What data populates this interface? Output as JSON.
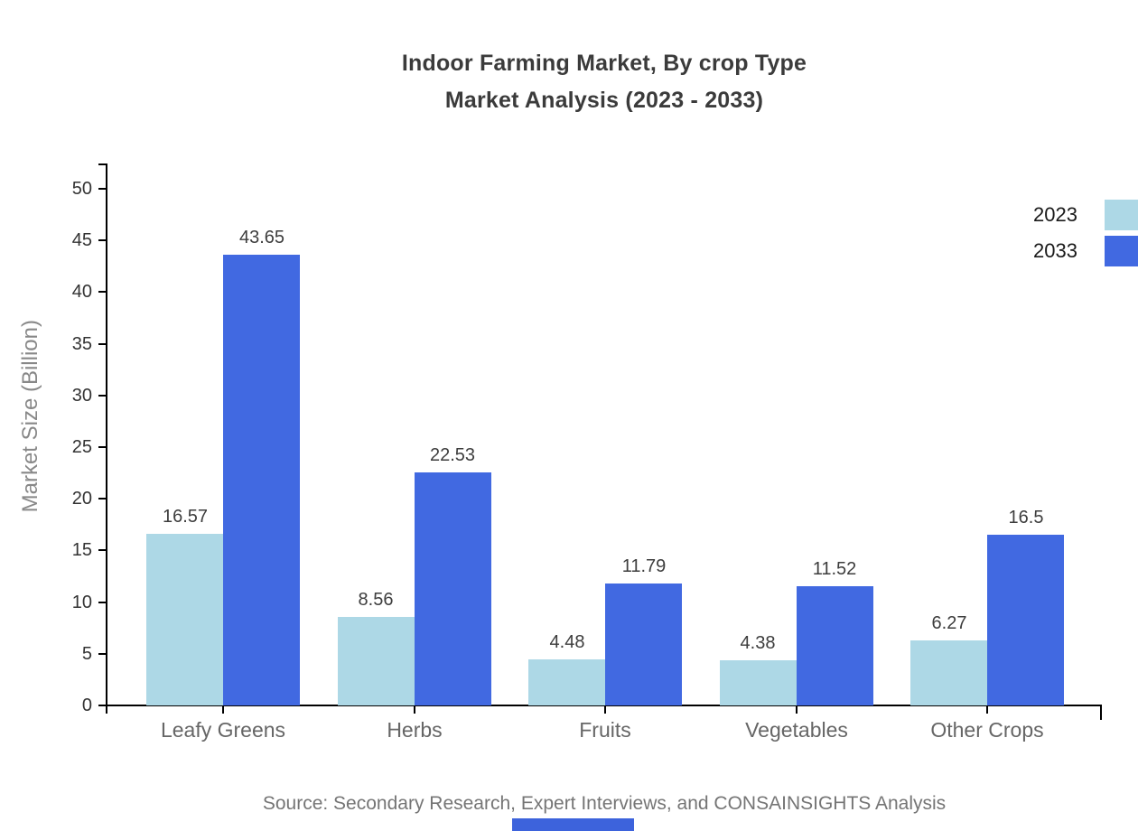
{
  "title": {
    "line1": "Indoor Farming Market, By crop Type",
    "line2": "Market Analysis (2023 - 2033)"
  },
  "source_note": "Source: Secondary Research, Expert Interviews, and CONSAINSIGHTS Analysis",
  "colors": {
    "series_2023": "#ADD8E6",
    "series_2033": "#4169E1",
    "axis": "#000000",
    "title_text": "#3b3b3b",
    "tick_label": "#333333",
    "category_label": "#666666",
    "value_label": "#3d3d3d",
    "axis_title": "#888888",
    "legend_label": "#1a1a1a",
    "source_text": "#757575",
    "bottom_strip": "#3d63dc"
  },
  "legend": {
    "items": [
      {
        "label": "2023",
        "color": "#ADD8E6"
      },
      {
        "label": "2033",
        "color": "#4169E1"
      }
    ]
  },
  "chart_data": {
    "type": "bar",
    "title": "Indoor Farming Market, By crop Type Market Analysis (2023 - 2033)",
    "categories": [
      "Leafy Greens",
      "Herbs",
      "Fruits",
      "Vegetables",
      "Other Crops"
    ],
    "series": [
      {
        "name": "2023",
        "color": "#ADD8E6",
        "values": [
          16.57,
          8.56,
          4.48,
          4.38,
          6.27
        ]
      },
      {
        "name": "2033",
        "color": "#4169E1",
        "values": [
          43.65,
          22.53,
          11.79,
          11.52,
          16.5
        ]
      }
    ],
    "xlabel": "",
    "ylabel": "Market Size (Billion)",
    "ylim": [
      0,
      50
    ],
    "ytick_step": 5,
    "grid": false,
    "legend_position": "top-right",
    "value_labels": true
  }
}
